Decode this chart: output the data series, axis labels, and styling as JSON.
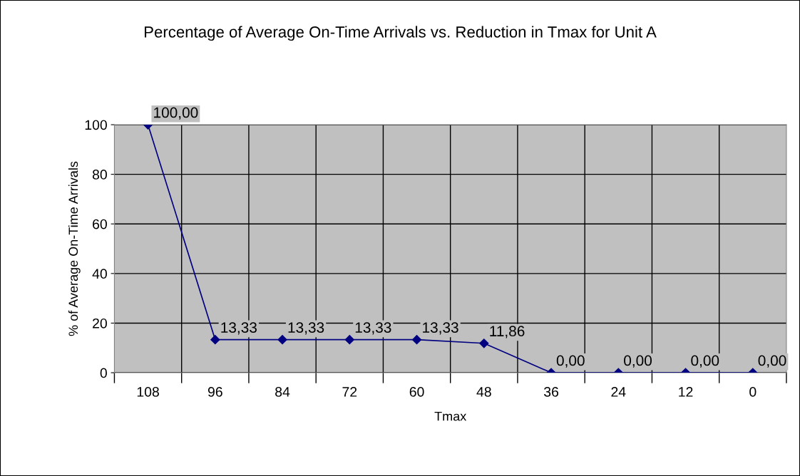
{
  "chart_data": {
    "type": "line",
    "title": "Percentage of Average On-Time Arrivals vs. Reduction in Tmax for Unit A",
    "xlabel": "Tmax",
    "ylabel": "% of Average On-Time Arrivals",
    "categories": [
      "108",
      "96",
      "84",
      "72",
      "60",
      "48",
      "36",
      "24",
      "12",
      "0"
    ],
    "series": [
      {
        "color": "#000080",
        "values": [
          100,
          13.33,
          13.33,
          13.33,
          13.33,
          11.86,
          0,
          0,
          0,
          0
        ],
        "value_labels": [
          "100,00",
          "13,33",
          "13,33",
          "13,33",
          "13,33",
          "11,86",
          "0,00",
          "0,00",
          "0,00",
          "0,00"
        ]
      }
    ],
    "ylim": [
      0,
      100
    ],
    "yticks": [
      0,
      20,
      40,
      60,
      80,
      100
    ],
    "grid": true,
    "legend": false,
    "marker": "diamond",
    "line_style": "solid"
  }
}
